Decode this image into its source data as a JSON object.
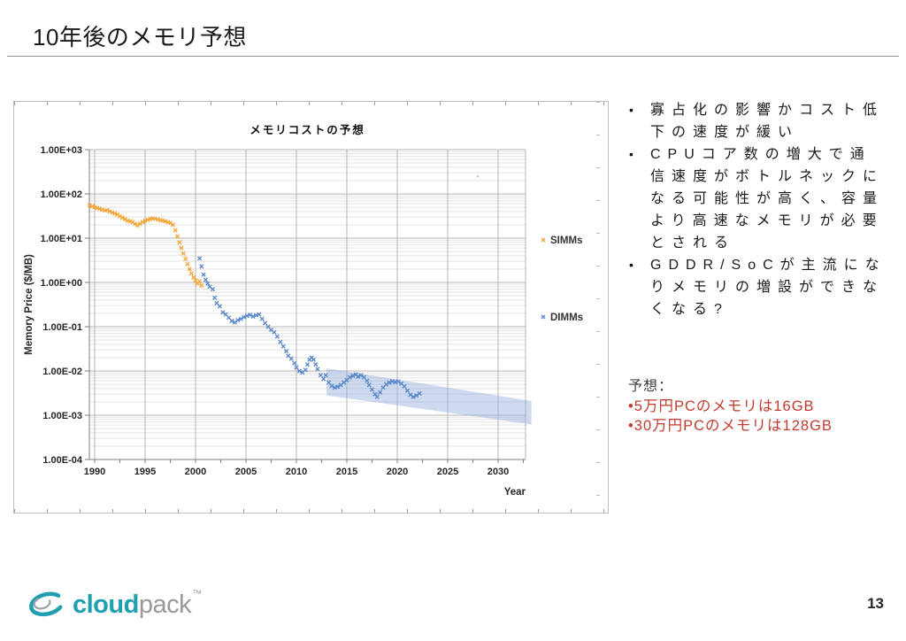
{
  "slide": {
    "title": "10年後のメモリ予想",
    "page_number": "13"
  },
  "logo": {
    "brand_bold": "cloud",
    "brand_light": "pack",
    "trademark": "™"
  },
  "notes": {
    "bullets": [
      "寡占化の影響かコスト低下の速度が緩い",
      "CPUコア数の増大で通信速度がボトルネックになる可能性が高く、容量より高速なメモリが必要とされる",
      "GDDR/SoCが主流になりメモリの増設ができなくなる?"
    ],
    "prediction_label": "予想：",
    "predictions": [
      "•5万円PCのメモリは16GB",
      "•30万円PCのメモリは128GB"
    ],
    "prediction_color": "#c23b2e"
  },
  "chart_data": {
    "type": "scatter",
    "title": "メモリコストの予想",
    "xlabel": "Year",
    "ylabel": "Memory Price ($/MB)",
    "x_axis": {
      "min": 1989.5,
      "max": 2032.7,
      "ticks": [
        1990,
        1995,
        2000,
        2005,
        2010,
        2015,
        2020,
        2025,
        2030
      ]
    },
    "y_axis": {
      "scale": "log",
      "max_exp": 3,
      "min_exp": -4,
      "tick_labels": [
        "1.00E+03",
        "1.00E+02",
        "1.00E+01",
        "1.00E+00",
        "1.00E-01",
        "1.00E-02",
        "1.00E-03",
        "1.00E-04"
      ]
    },
    "grid": {
      "major": true,
      "minor": true
    },
    "legend": {
      "position": "right",
      "entries": [
        "SIMMs",
        "DIMMs"
      ]
    },
    "series": [
      {
        "name": "SIMMs",
        "color": "#f0a432",
        "marker": "x",
        "points": [
          [
            1989.5,
            55
          ],
          [
            1989.75,
            52
          ],
          [
            1990,
            50
          ],
          [
            1990.25,
            48
          ],
          [
            1990.5,
            46
          ],
          [
            1990.75,
            44
          ],
          [
            1991,
            42
          ],
          [
            1991.25,
            43
          ],
          [
            1991.5,
            40
          ],
          [
            1991.75,
            38
          ],
          [
            1992,
            36
          ],
          [
            1992.25,
            34
          ],
          [
            1992.5,
            31
          ],
          [
            1992.75,
            29
          ],
          [
            1993,
            27
          ],
          [
            1993.25,
            25
          ],
          [
            1993.5,
            24
          ],
          [
            1993.75,
            23
          ],
          [
            1994,
            21
          ],
          [
            1994.25,
            19.5
          ],
          [
            1994.5,
            21
          ],
          [
            1994.75,
            23
          ],
          [
            1995,
            24.5
          ],
          [
            1995.25,
            26
          ],
          [
            1995.5,
            27
          ],
          [
            1995.75,
            28
          ],
          [
            1996,
            27.5
          ],
          [
            1996.25,
            26.5
          ],
          [
            1996.5,
            25.5
          ],
          [
            1996.75,
            25
          ],
          [
            1997,
            24
          ],
          [
            1997.25,
            23
          ],
          [
            1997.5,
            22
          ],
          [
            1997.75,
            20
          ],
          [
            1998,
            15
          ],
          [
            1998.2,
            11
          ],
          [
            1998.4,
            8
          ],
          [
            1998.6,
            6
          ],
          [
            1998.8,
            4.5
          ],
          [
            1999,
            3.4
          ],
          [
            1999.2,
            2.6
          ],
          [
            1999.4,
            2.0
          ],
          [
            1999.6,
            1.6
          ],
          [
            1999.8,
            1.3
          ],
          [
            2000,
            1.1
          ],
          [
            2000.2,
            0.95
          ],
          [
            2000.4,
            1.05
          ],
          [
            2000.6,
            0.85
          ]
        ]
      },
      {
        "name": "DIMMs",
        "color": "#5585c8",
        "marker": "x",
        "points": [
          [
            2000.4,
            3.5
          ],
          [
            2000.6,
            2.3
          ],
          [
            2000.8,
            1.5
          ],
          [
            2001,
            1.15
          ],
          [
            2001.2,
            0.95
          ],
          [
            2001.4,
            0.8
          ],
          [
            2001.7,
            0.7
          ],
          [
            2001.9,
            0.45
          ],
          [
            2002.1,
            0.34
          ],
          [
            2002.4,
            0.29
          ],
          [
            2002.7,
            0.21
          ],
          [
            2003,
            0.19
          ],
          [
            2003.3,
            0.16
          ],
          [
            2003.6,
            0.135
          ],
          [
            2003.9,
            0.125
          ],
          [
            2004.2,
            0.14
          ],
          [
            2004.5,
            0.15
          ],
          [
            2004.8,
            0.165
          ],
          [
            2005.1,
            0.175
          ],
          [
            2005.4,
            0.185
          ],
          [
            2005.7,
            0.17
          ],
          [
            2006,
            0.18
          ],
          [
            2006.3,
            0.19
          ],
          [
            2006.6,
            0.15
          ],
          [
            2006.9,
            0.12
          ],
          [
            2007.2,
            0.1
          ],
          [
            2007.5,
            0.085
          ],
          [
            2007.8,
            0.075
          ],
          [
            2008.1,
            0.06
          ],
          [
            2008.4,
            0.045
          ],
          [
            2008.7,
            0.036
          ],
          [
            2009,
            0.028
          ],
          [
            2009.2,
            0.022
          ],
          [
            2009.5,
            0.019
          ],
          [
            2009.8,
            0.015
          ],
          [
            2010,
            0.012
          ],
          [
            2010.3,
            0.01
          ],
          [
            2010.6,
            0.0092
          ],
          [
            2010.9,
            0.0105
          ],
          [
            2011.1,
            0.014
          ],
          [
            2011.3,
            0.018
          ],
          [
            2011.5,
            0.02
          ],
          [
            2011.7,
            0.018
          ],
          [
            2011.9,
            0.014
          ],
          [
            2012.1,
            0.011
          ],
          [
            2012.4,
            0.008
          ],
          [
            2012.7,
            0.0066
          ],
          [
            2012.9,
            0.008
          ],
          [
            2013.2,
            0.0055
          ],
          [
            2013.5,
            0.0046
          ],
          [
            2013.8,
            0.0042
          ],
          [
            2014.1,
            0.0044
          ],
          [
            2014.4,
            0.0048
          ],
          [
            2014.7,
            0.0055
          ],
          [
            2015,
            0.0062
          ],
          [
            2015.3,
            0.0072
          ],
          [
            2015.6,
            0.0078
          ],
          [
            2015.9,
            0.0084
          ],
          [
            2016.1,
            0.0074
          ],
          [
            2016.4,
            0.008
          ],
          [
            2016.7,
            0.0072
          ],
          [
            2017,
            0.006
          ],
          [
            2017.2,
            0.0048
          ],
          [
            2017.5,
            0.0038
          ],
          [
            2017.8,
            0.003
          ],
          [
            2018,
            0.0026
          ],
          [
            2018.3,
            0.0033
          ],
          [
            2018.6,
            0.0042
          ],
          [
            2018.9,
            0.005
          ],
          [
            2019.2,
            0.0055
          ],
          [
            2019.5,
            0.0058
          ],
          [
            2019.8,
            0.0056
          ],
          [
            2020.1,
            0.0058
          ],
          [
            2020.4,
            0.0052
          ],
          [
            2020.7,
            0.0045
          ],
          [
            2021,
            0.0036
          ],
          [
            2021.3,
            0.0029
          ],
          [
            2021.6,
            0.0026
          ],
          [
            2021.9,
            0.0028
          ],
          [
            2022.2,
            0.0031
          ]
        ]
      }
    ],
    "projection_band": {
      "description": "forecast band",
      "color": "#92aede",
      "opacity": 0.45,
      "polygon": [
        [
          2013.0,
          0.0115
        ],
        [
          2033.3,
          0.0021
        ],
        [
          2033.3,
          0.00062
        ],
        [
          2013.0,
          0.0028
        ]
      ]
    },
    "stray_point": {
      "year": 2028,
      "price": 250,
      "color": "#b0b0b0"
    }
  }
}
